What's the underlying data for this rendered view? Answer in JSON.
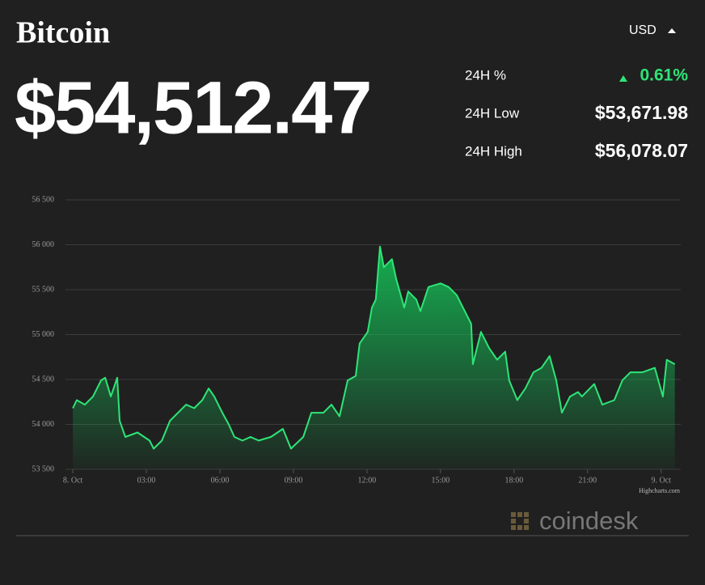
{
  "header": {
    "title": "Bitcoin",
    "price": "$54,512.47",
    "currency": "USD",
    "stats": [
      {
        "label": "24H %",
        "value": "0.61%"
      },
      {
        "label": "24H Low",
        "value": "$53,671.98"
      },
      {
        "label": "24H High",
        "value": "$56,078.07"
      }
    ],
    "credit": "Highcharts.com",
    "logo": "coindesk"
  },
  "chart_data": {
    "type": "area",
    "color": "#2ee577",
    "x": [
      0,
      0.16,
      0.49,
      0.82,
      1.15,
      1.32,
      1.55,
      1.81,
      1.91,
      2.14,
      2.64,
      3.13,
      3.3,
      3.63,
      3.96,
      4.29,
      4.62,
      4.95,
      5.28,
      5.54,
      5.77,
      6.1,
      6.36,
      6.59,
      6.92,
      7.25,
      7.58,
      8.08,
      8.57,
      8.9,
      9.4,
      9.73,
      10.22,
      10.55,
      10.88,
      11.21,
      11.54,
      11.7,
      12.03,
      12.2,
      12.36,
      12.53,
      12.69,
      13.02,
      13.19,
      13.52,
      13.68,
      14.01,
      14.18,
      14.51,
      15.0,
      15.33,
      15.66,
      15.99,
      16.25,
      16.32,
      16.65,
      16.98,
      17.31,
      17.64,
      17.8,
      18.13,
      18.46,
      18.79,
      19.12,
      19.45,
      19.72,
      19.95,
      20.28,
      20.61,
      20.77,
      21.27,
      21.6,
      22.09,
      22.42,
      22.75,
      23.24,
      23.74,
      24.07,
      24.23,
      24.56
    ],
    "values": [
      54180,
      54270,
      54220,
      54310,
      54490,
      54520,
      54310,
      54520,
      54040,
      53860,
      53910,
      53820,
      53730,
      53820,
      54040,
      54130,
      54220,
      54180,
      54270,
      54400,
      54310,
      54130,
      54000,
      53860,
      53820,
      53860,
      53820,
      53860,
      53950,
      53730,
      53860,
      54130,
      54130,
      54220,
      54090,
      54490,
      54540,
      54900,
      55030,
      55300,
      55390,
      55980,
      55750,
      55840,
      55620,
      55300,
      55480,
      55390,
      55260,
      55530,
      55570,
      55530,
      55440,
      55260,
      55120,
      54670,
      55030,
      54850,
      54720,
      54810,
      54490,
      54270,
      54400,
      54580,
      54630,
      54760,
      54490,
      54130,
      54310,
      54360,
      54310,
      54450,
      54220,
      54270,
      54490,
      54580,
      54580,
      54630,
      54310,
      54720,
      54670
    ],
    "xlim": [
      -0.3,
      24.8
    ],
    "xticks": [
      {
        "value": 0,
        "label": "8. Oct"
      },
      {
        "value": 3,
        "label": "03:00"
      },
      {
        "value": 6,
        "label": "06:00"
      },
      {
        "value": 9,
        "label": "09:00"
      },
      {
        "value": 12,
        "label": "12:00"
      },
      {
        "value": 15,
        "label": "15:00"
      },
      {
        "value": 18,
        "label": "18:00"
      },
      {
        "value": 21,
        "label": "21:00"
      },
      {
        "value": 24,
        "label": "9. Oct"
      }
    ],
    "ylim": [
      53500,
      56500
    ],
    "yticks": [
      {
        "value": 53500,
        "label": "53 500"
      },
      {
        "value": 54000,
        "label": "54 000"
      },
      {
        "value": 54500,
        "label": "54 500"
      },
      {
        "value": 55000,
        "label": "55 000"
      },
      {
        "value": 55500,
        "label": "55 500"
      },
      {
        "value": 56000,
        "label": "56 000"
      },
      {
        "value": 56500,
        "label": "56 500"
      }
    ],
    "grid": true
  }
}
